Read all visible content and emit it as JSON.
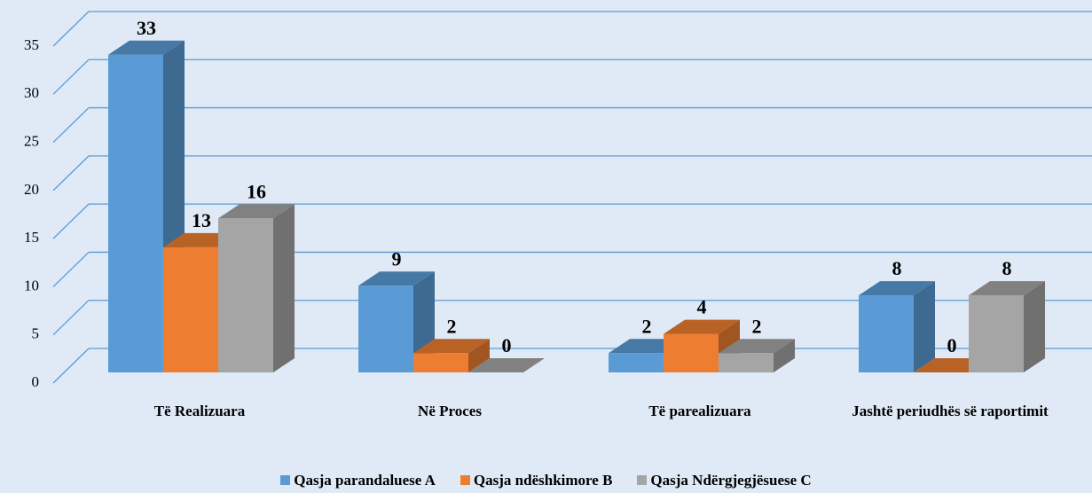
{
  "chart_data": {
    "type": "bar3d",
    "categories": [
      "Të Realizuara",
      "Në Proces",
      "Të parealizuara",
      "Jashtë periudhës së raportimit"
    ],
    "series": [
      {
        "name": "Qasja parandaluese A",
        "color": "#5b9bd5",
        "values": [
          33,
          9,
          2,
          8
        ]
      },
      {
        "name": "Qasja ndëshkimore B",
        "color": "#ed7d31",
        "values": [
          13,
          2,
          4,
          0
        ]
      },
      {
        "name": "Qasja Ndërgjegjësuese C",
        "color": "#a5a5a5",
        "values": [
          16,
          0,
          2,
          8
        ]
      }
    ],
    "ylim": [
      0,
      35
    ],
    "yticks": [
      0,
      5,
      10,
      15,
      20,
      25,
      30,
      35
    ],
    "grid": true,
    "legend": "bottom"
  }
}
